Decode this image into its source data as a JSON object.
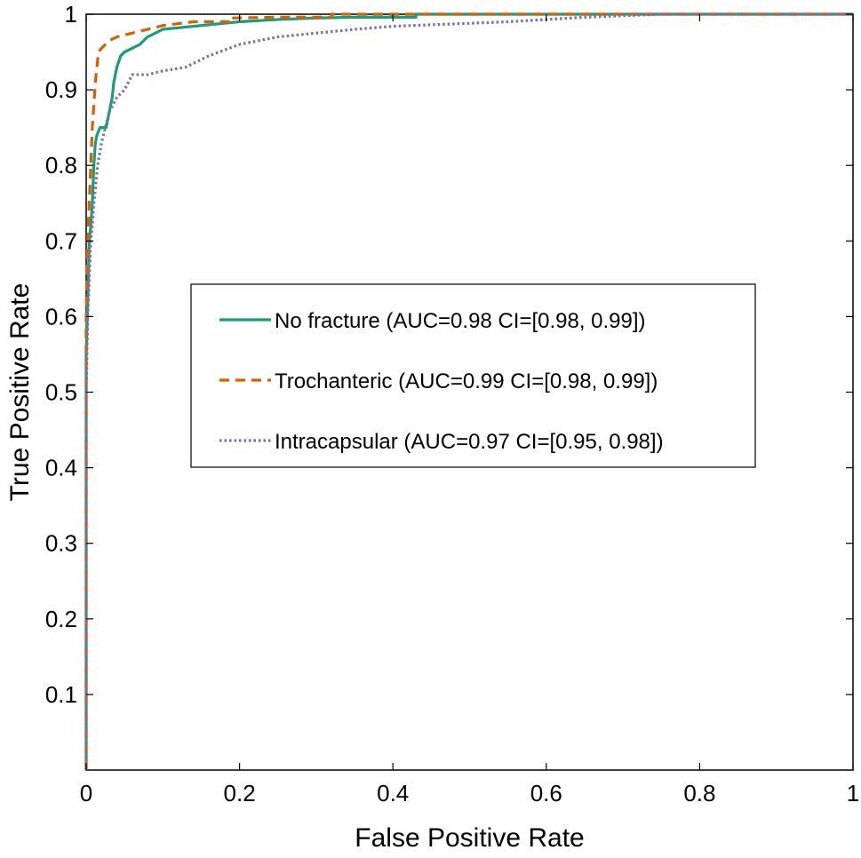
{
  "chart_data": {
    "type": "line",
    "title": "",
    "xlabel": "False Positive Rate",
    "ylabel": "True Positive Rate",
    "xlim": [
      0,
      1
    ],
    "ylim": [
      0,
      1
    ],
    "xticks": [
      0,
      0.2,
      0.4,
      0.6,
      0.8,
      1
    ],
    "xtick_labels": [
      "0",
      "0.2",
      "0.4",
      "0.6",
      "0.8",
      "1"
    ],
    "yticks": [
      0.1,
      0.2,
      0.3,
      0.4,
      0.5,
      0.6,
      0.7,
      0.8,
      0.9,
      1
    ],
    "ytick_labels": [
      "0.1",
      "0.2",
      "0.3",
      "0.4",
      "0.5",
      "0.6",
      "0.7",
      "0.8",
      "0.9",
      "1"
    ],
    "grid": false,
    "legend_position": "center-left",
    "series": [
      {
        "name": "No fracture (AUC=0.98 CI=[0.98, 0.99])",
        "color": "#1a9e77",
        "dash": "solid",
        "x": [
          0,
          0,
          0.002,
          0.004,
          0.006,
          0.008,
          0.01,
          0.012,
          0.014,
          0.018,
          0.022,
          0.026,
          0.03,
          0.034,
          0.036,
          0.04,
          0.045,
          0.05,
          0.06,
          0.07,
          0.08,
          0.09,
          0.1,
          0.12,
          0.15,
          0.2,
          0.25,
          0.3,
          0.35,
          0.43,
          0.43,
          1
        ],
        "y": [
          0,
          0.55,
          0.62,
          0.7,
          0.72,
          0.75,
          0.8,
          0.83,
          0.84,
          0.85,
          0.85,
          0.85,
          0.87,
          0.89,
          0.91,
          0.93,
          0.945,
          0.95,
          0.955,
          0.96,
          0.97,
          0.975,
          0.98,
          0.982,
          0.985,
          0.99,
          0.993,
          0.995,
          0.996,
          0.996,
          1,
          1
        ]
      },
      {
        "name": "Trochanteric (AUC=0.99 CI=[0.98, 0.99])",
        "color": "#d95f02",
        "dash": "dashed",
        "x": [
          0,
          0,
          0.002,
          0.004,
          0.006,
          0.008,
          0.01,
          0.012,
          0.014,
          0.016,
          0.02,
          0.025,
          0.03,
          0.04,
          0.06,
          0.08,
          0.1,
          0.14,
          0.19,
          0.19,
          0.25,
          0.3,
          0.32,
          0.32,
          1
        ],
        "y": [
          0,
          0.6,
          0.7,
          0.75,
          0.8,
          0.85,
          0.88,
          0.91,
          0.93,
          0.95,
          0.955,
          0.96,
          0.965,
          0.97,
          0.975,
          0.98,
          0.985,
          0.99,
          0.99,
          0.995,
          0.996,
          0.996,
          0.996,
          1,
          1
        ]
      },
      {
        "name": "Intracapsular (AUC=0.97 CI=[0.95, 0.98])",
        "color": "#7570b3",
        "dash": "dotted",
        "x": [
          0,
          0,
          0.002,
          0.004,
          0.006,
          0.008,
          0.01,
          0.015,
          0.02,
          0.025,
          0.03,
          0.035,
          0.04,
          0.045,
          0.05,
          0.055,
          0.06,
          0.08,
          0.1,
          0.13,
          0.16,
          0.2,
          0.25,
          0.3,
          0.35,
          0.4,
          0.45,
          0.5,
          0.55,
          0.6,
          0.65,
          0.7,
          0.75,
          1
        ],
        "y": [
          0,
          0.5,
          0.6,
          0.65,
          0.7,
          0.72,
          0.75,
          0.8,
          0.83,
          0.85,
          0.87,
          0.88,
          0.89,
          0.895,
          0.9,
          0.91,
          0.92,
          0.92,
          0.925,
          0.93,
          0.945,
          0.96,
          0.97,
          0.975,
          0.98,
          0.984,
          0.986,
          0.988,
          0.99,
          0.993,
          0.996,
          0.998,
          1,
          1
        ]
      }
    ]
  }
}
